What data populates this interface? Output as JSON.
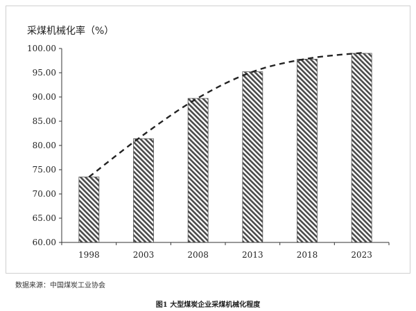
{
  "chart_data": {
    "type": "bar",
    "title": "",
    "ylabel": "采煤机械化率（%）",
    "xlabel": "",
    "categories": [
      "1998",
      "2003",
      "2008",
      "2013",
      "2018",
      "2023"
    ],
    "values": [
      73.5,
      81.4,
      89.7,
      95.2,
      97.8,
      99.0
    ],
    "ylim": [
      60,
      100
    ],
    "yticks": [
      "60.00",
      "65.00",
      "70.00",
      "75.00",
      "80.00",
      "85.00",
      "90.00",
      "95.00",
      "100.00"
    ],
    "trendline": {
      "style": "dashed",
      "shape": "curve",
      "x": [
        "1998",
        "2003",
        "2008",
        "2013",
        "2018",
        "2023"
      ],
      "values": [
        73.5,
        82.2,
        89.8,
        95.2,
        97.9,
        99.1
      ]
    },
    "bar_fill": "diagonal-hatch",
    "colors": {
      "bar_hatch": "#4a4a4a",
      "bar_border": "#555555",
      "trendline": "#222222",
      "axis": "#333333"
    },
    "grid": false,
    "legend": "none"
  },
  "source_note": "数据来源：中国煤炭工业协会",
  "caption": "图1 大型煤炭企业采煤机械化程度"
}
